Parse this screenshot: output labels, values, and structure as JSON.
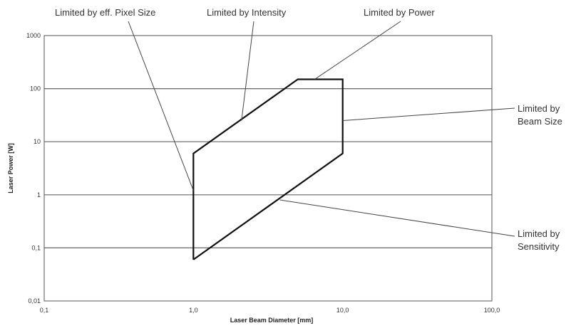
{
  "chart_data": {
    "type": "line",
    "xlabel": "Laser Beam Diameter [mm]",
    "ylabel": "Laser Power [W]",
    "x_scale": "log",
    "y_scale": "log",
    "xlim": [
      0.1,
      100
    ],
    "ylim": [
      0.01,
      1000
    ],
    "x_ticks": [
      "0,1",
      "1,0",
      "10,0",
      "100,0"
    ],
    "y_ticks": [
      "0,01",
      "0,1",
      "1",
      "10",
      "100",
      "1000"
    ],
    "grid": "horizontal",
    "series": [
      {
        "x": [
          1.0,
          1.0,
          5.0,
          10.0,
          10.0,
          1.0
        ],
        "y": [
          0.06,
          6,
          150,
          150,
          6,
          0.06
        ]
      }
    ],
    "annotations": [
      {
        "lines": [
          "Limited by eff. Pixel Size"
        ],
        "point": [
          1.0,
          1.2
        ]
      },
      {
        "lines": [
          "Limited by Intensity"
        ],
        "point": [
          2.1,
          25
        ]
      },
      {
        "lines": [
          "Limited by Power"
        ],
        "point": [
          6.5,
          150
        ]
      },
      {
        "lines": [
          "Limited by",
          "Beam Size"
        ],
        "point": [
          10.0,
          25
        ]
      },
      {
        "lines": [
          "Limited by",
          "Sensitivity"
        ],
        "point": [
          3.8,
          0.8
        ]
      }
    ]
  }
}
